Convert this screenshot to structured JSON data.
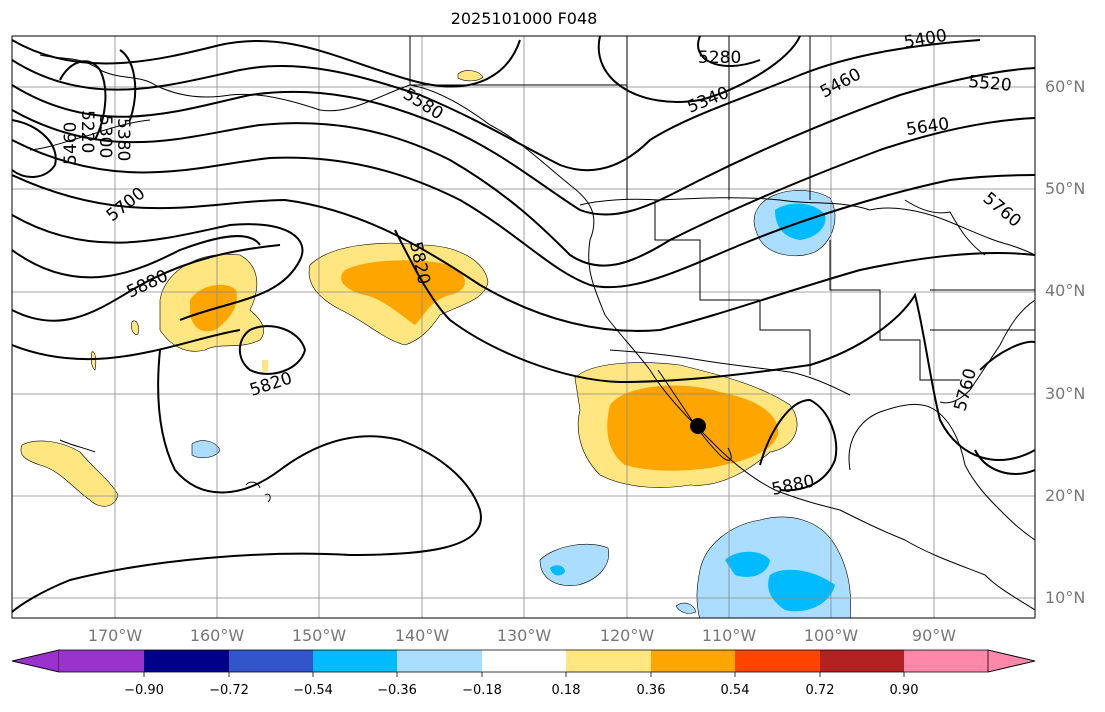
{
  "title": "2025101000 F048",
  "map": {
    "lat_labels": [
      "60°N",
      "50°N",
      "40°N",
      "30°N",
      "20°N",
      "10°N"
    ],
    "lon_labels": [
      "170°W",
      "160°W",
      "150°W",
      "140°W",
      "130°W",
      "120°W",
      "110°W",
      "100°W",
      "90°W"
    ],
    "contour_labels": [
      "5280",
      "5340",
      "5400",
      "5460",
      "5520",
      "5580",
      "5640",
      "5700",
      "5760",
      "5760",
      "5820",
      "5820",
      "5880",
      "5880",
      "5220",
      "5300",
      "5380",
      "5460"
    ],
    "colors": {
      "contour": "#000000",
      "coast": "#000000",
      "grid": "#888888",
      "label": "#777777"
    }
  },
  "colorbar": {
    "colors": [
      "#9933cc",
      "#000088",
      "#3355cc",
      "#00bbff",
      "#aaddff",
      "#ffffff",
      "#ffe680",
      "#ffa500",
      "#ff4400",
      "#b22222",
      "#ff88aa"
    ],
    "tick_labels": [
      "−0.90",
      "−0.72",
      "−0.54",
      "−0.36",
      "−0.18",
      "0.18",
      "0.36",
      "0.54",
      "0.72",
      "0.90"
    ]
  }
}
